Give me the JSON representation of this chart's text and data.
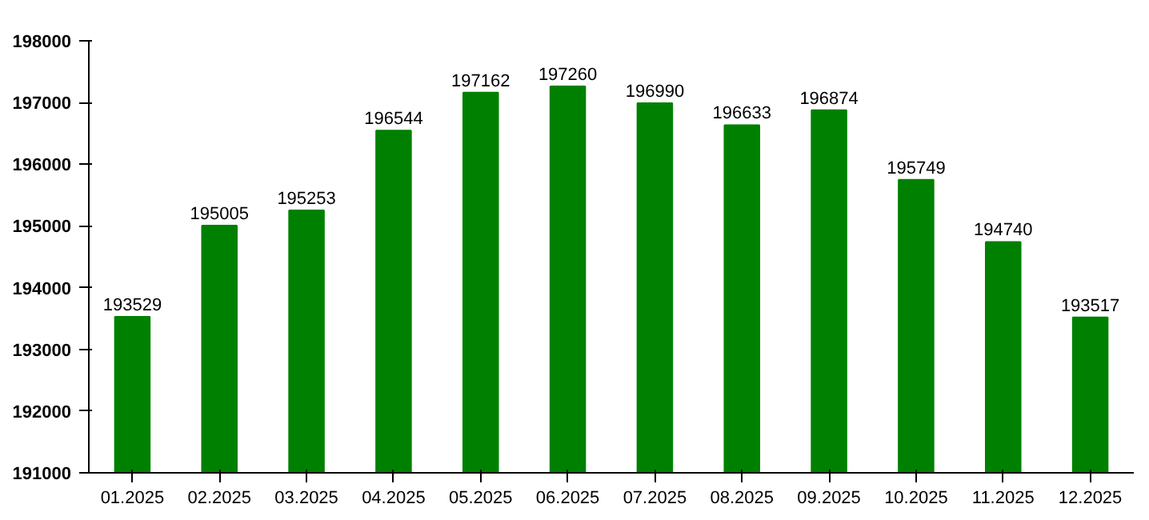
{
  "chart_data": {
    "type": "bar",
    "categories": [
      "01.2025",
      "02.2025",
      "03.2025",
      "04.2025",
      "05.2025",
      "06.2025",
      "07.2025",
      "08.2025",
      "09.2025",
      "10.2025",
      "11.2025",
      "12.2025"
    ],
    "values": [
      193529,
      195005,
      195253,
      196544,
      197162,
      197260,
      196990,
      196633,
      196874,
      195749,
      194740,
      193517
    ],
    "color": "#008000",
    "ylim": [
      191000,
      198000
    ],
    "yticks": [
      191000,
      192000,
      193000,
      194000,
      195000,
      196000,
      197000,
      198000
    ],
    "data_labels": true,
    "grid": false
  }
}
